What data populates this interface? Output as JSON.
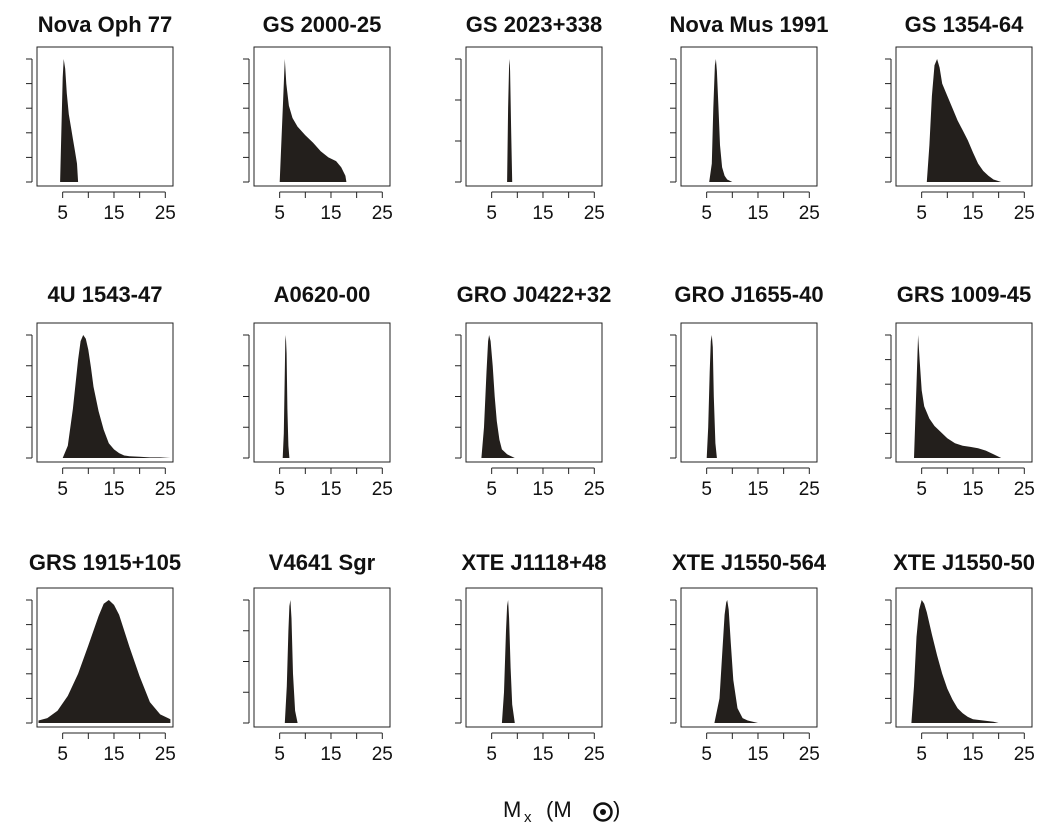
{
  "figure": {
    "xlabel_main": "M",
    "xlabel_sub": "x",
    "xlabel_unit": "(M",
    "xlabel_close": ")"
  },
  "chart_data": [
    {
      "type": "area",
      "title": "Nova Oph 77",
      "xticks": [
        5,
        15,
        25
      ],
      "xlim": [
        0,
        26.5
      ],
      "y_ticks": 6,
      "x": [
        4.5,
        5.0,
        5.2,
        5.5,
        5.8,
        6.2,
        6.6,
        7.0,
        7.4,
        7.8,
        8.0
      ],
      "y": [
        0,
        0.85,
        1.0,
        0.92,
        0.72,
        0.55,
        0.45,
        0.35,
        0.25,
        0.15,
        0
      ]
    },
    {
      "type": "area",
      "title": "GS 2000-25",
      "xticks": [
        5,
        15,
        25
      ],
      "xlim": [
        0,
        26.5
      ],
      "y_ticks": 6,
      "x": [
        5.0,
        5.7,
        6.0,
        6.3,
        6.8,
        7.5,
        8.5,
        10,
        11.5,
        13,
        14.5,
        16,
        17.0,
        17.8,
        18.0
      ],
      "y": [
        0,
        0.7,
        1.0,
        0.8,
        0.62,
        0.52,
        0.45,
        0.38,
        0.32,
        0.25,
        0.2,
        0.17,
        0.12,
        0.05,
        0
      ]
    },
    {
      "type": "area",
      "title": "GS 2023+338",
      "xticks": [
        5,
        15,
        25
      ],
      "xlim": [
        0,
        26.5
      ],
      "y_ticks": 4,
      "x": [
        8.0,
        8.2,
        8.4,
        8.5,
        8.6,
        8.8,
        9.0
      ],
      "y": [
        0,
        0.6,
        0.95,
        1.0,
        0.9,
        0.4,
        0
      ]
    },
    {
      "type": "area",
      "title": "Nova Mus 1991",
      "xticks": [
        5,
        15,
        25
      ],
      "xlim": [
        0,
        26.5
      ],
      "y_ticks": 6,
      "x": [
        5.5,
        6.0,
        6.3,
        6.6,
        6.8,
        7.0,
        7.3,
        7.6,
        8.0,
        8.5,
        9.0,
        10.0
      ],
      "y": [
        0,
        0.15,
        0.6,
        0.95,
        1.0,
        0.9,
        0.6,
        0.3,
        0.12,
        0.05,
        0.02,
        0
      ]
    },
    {
      "type": "area",
      "title": "GS 1354-64",
      "xticks": [
        5,
        15,
        25
      ],
      "xlim": [
        0,
        26.5
      ],
      "y_ticks": 6,
      "x": [
        6.0,
        6.5,
        7.0,
        7.5,
        8.0,
        8.5,
        9.0,
        10,
        11,
        12,
        13,
        14,
        15,
        16,
        17,
        18,
        19,
        20.5
      ],
      "y": [
        0,
        0.3,
        0.7,
        0.95,
        1.0,
        0.93,
        0.8,
        0.7,
        0.6,
        0.5,
        0.42,
        0.34,
        0.24,
        0.15,
        0.09,
        0.05,
        0.02,
        0
      ]
    },
    {
      "type": "area",
      "title": "4U 1543-47",
      "xticks": [
        5,
        15,
        25
      ],
      "xlim": [
        0,
        26.5
      ],
      "y_ticks": 5,
      "x": [
        5.0,
        6.0,
        7.0,
        8.0,
        8.5,
        9.0,
        9.5,
        10,
        10.5,
        11,
        12,
        13,
        14,
        15,
        16,
        17,
        18,
        20,
        22,
        24,
        26
      ],
      "y": [
        0,
        0.1,
        0.4,
        0.8,
        0.95,
        1.0,
        0.97,
        0.88,
        0.74,
        0.58,
        0.38,
        0.23,
        0.12,
        0.07,
        0.04,
        0.02,
        0.015,
        0.01,
        0.005,
        0.005,
        0
      ]
    },
    {
      "type": "area",
      "title": "A0620-00",
      "xticks": [
        5,
        15,
        25
      ],
      "xlim": [
        0,
        26.5
      ],
      "y_ticks": 5,
      "x": [
        5.6,
        5.8,
        6.0,
        6.1,
        6.2,
        6.35,
        6.5,
        6.7,
        6.9
      ],
      "y": [
        0,
        0.2,
        0.7,
        0.95,
        1.0,
        0.85,
        0.4,
        0.1,
        0
      ]
    },
    {
      "type": "area",
      "title": "GRO J0422+32",
      "xticks": [
        5,
        15,
        25
      ],
      "xlim": [
        0,
        26.5
      ],
      "y_ticks": 5,
      "x": [
        3.0,
        3.5,
        4.0,
        4.3,
        4.5,
        4.8,
        5.2,
        5.6,
        6.0,
        6.5,
        7.0,
        8.0,
        9.5
      ],
      "y": [
        0,
        0.25,
        0.7,
        0.95,
        1.0,
        0.95,
        0.75,
        0.5,
        0.3,
        0.15,
        0.07,
        0.03,
        0
      ]
    },
    {
      "type": "area",
      "title": "GRO J1655-40",
      "xticks": [
        5,
        15,
        25
      ],
      "xlim": [
        0,
        26.5
      ],
      "y_ticks": 5,
      "x": [
        5.0,
        5.3,
        5.6,
        5.8,
        6.0,
        6.2,
        6.4,
        6.7,
        7.0
      ],
      "y": [
        0,
        0.25,
        0.7,
        0.95,
        1.0,
        0.9,
        0.5,
        0.12,
        0
      ]
    },
    {
      "type": "area",
      "title": "GRS 1009-45",
      "xticks": [
        5,
        15,
        25
      ],
      "xlim": [
        0,
        26.5
      ],
      "y_ticks": 6,
      "x": [
        3.5,
        4.0,
        4.3,
        4.6,
        5.0,
        5.5,
        6.5,
        7.5,
        8.5,
        10,
        11.5,
        13,
        14.5,
        16,
        17.5,
        19,
        20.5
      ],
      "y": [
        0,
        0.6,
        1.0,
        0.8,
        0.55,
        0.42,
        0.32,
        0.26,
        0.22,
        0.16,
        0.12,
        0.1,
        0.09,
        0.08,
        0.06,
        0.03,
        0
      ]
    },
    {
      "type": "area",
      "title": "GRS 1915+105",
      "xticks": [
        5,
        15,
        25
      ],
      "xlim": [
        0,
        26.5
      ],
      "y_ticks": 6,
      "x": [
        0.3,
        2,
        4,
        6,
        8,
        10,
        12,
        13,
        14,
        15,
        16,
        18,
        20,
        22,
        24,
        26
      ],
      "y": [
        0.02,
        0.04,
        0.1,
        0.22,
        0.4,
        0.63,
        0.87,
        0.97,
        1.0,
        0.96,
        0.88,
        0.62,
        0.38,
        0.17,
        0.07,
        0.03
      ]
    },
    {
      "type": "area",
      "title": "V4641 Sgr",
      "xticks": [
        5,
        15,
        25
      ],
      "xlim": [
        0,
        26.5
      ],
      "y_ticks": 5,
      "x": [
        6.0,
        6.4,
        6.7,
        6.9,
        7.1,
        7.3,
        7.6,
        8.0,
        8.5
      ],
      "y": [
        0,
        0.3,
        0.75,
        0.95,
        1.0,
        0.85,
        0.4,
        0.1,
        0
      ]
    },
    {
      "type": "area",
      "title": "XTE J1118+48",
      "xticks": [
        5,
        15,
        25
      ],
      "xlim": [
        0,
        26.5
      ],
      "y_ticks": 6,
      "x": [
        7.0,
        7.4,
        7.8,
        8.0,
        8.2,
        8.4,
        8.7,
        9.0,
        9.5
      ],
      "y": [
        0,
        0.25,
        0.75,
        0.95,
        1.0,
        0.85,
        0.45,
        0.15,
        0
      ]
    },
    {
      "type": "area",
      "title": "XTE J1550-564",
      "xticks": [
        5,
        15,
        25
      ],
      "xlim": [
        0,
        26.5
      ],
      "y_ticks": 6,
      "x": [
        6.5,
        7.5,
        8.0,
        8.5,
        8.8,
        9.0,
        9.3,
        9.7,
        10.2,
        11,
        12,
        13,
        15
      ],
      "y": [
        0,
        0.2,
        0.55,
        0.88,
        0.98,
        1.0,
        0.92,
        0.65,
        0.35,
        0.12,
        0.04,
        0.02,
        0
      ]
    },
    {
      "type": "area",
      "title": "XTE J1550-50",
      "xticks": [
        5,
        15,
        25
      ],
      "xlim": [
        0,
        26.5
      ],
      "y_ticks": 6,
      "x": [
        3.0,
        3.5,
        4.0,
        4.5,
        5.0,
        5.5,
        6.0,
        7.0,
        8.0,
        9.0,
        10,
        11,
        12,
        13,
        14,
        15,
        17,
        19,
        20
      ],
      "y": [
        0,
        0.3,
        0.7,
        0.92,
        1.0,
        0.97,
        0.9,
        0.72,
        0.55,
        0.4,
        0.28,
        0.19,
        0.12,
        0.08,
        0.05,
        0.03,
        0.02,
        0.01,
        0
      ]
    }
  ]
}
